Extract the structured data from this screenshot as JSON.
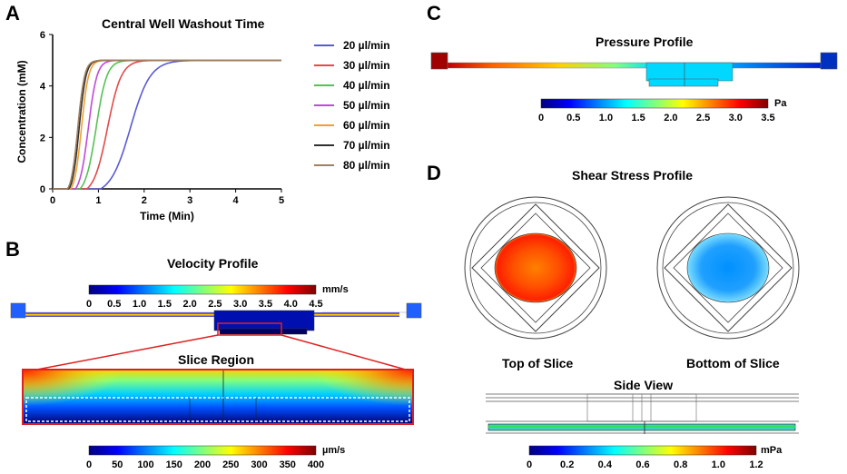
{
  "panels": {
    "a": {
      "letter": "A"
    },
    "b": {
      "letter": "B",
      "velocity_title": "Velocity Profile",
      "velocity_unit": "mm/s",
      "velocity_ticks": [
        "0",
        "0.5",
        "1.0",
        "1.5",
        "2.0",
        "2.5",
        "3.0",
        "3.5",
        "4.0",
        "4.5"
      ],
      "slice_title": "Slice Region",
      "slice_unit": "µm/s",
      "slice_ticks": [
        "0",
        "50",
        "100",
        "150",
        "200",
        "250",
        "300",
        "350",
        "400"
      ]
    },
    "c": {
      "letter": "C",
      "title": "Pressure Profile",
      "unit": "Pa",
      "ticks": [
        "0",
        "0.5",
        "1.0",
        "1.5",
        "2.0",
        "2.5",
        "3.0",
        "3.5"
      ]
    },
    "d": {
      "letter": "D",
      "title": "Shear Stress Profile",
      "top_caption": "Top of Slice",
      "bottom_caption": "Bottom of Slice",
      "side_caption": "Side View",
      "unit": "mPa",
      "ticks": [
        "0",
        "0.2",
        "0.4",
        "0.6",
        "0.8",
        "1.0",
        "1.2"
      ]
    }
  },
  "colors": {
    "jet": [
      "#00007f",
      "#0000ff",
      "#00aaff",
      "#00ffff",
      "#7fff7f",
      "#ffff00",
      "#ff7f00",
      "#ff0000",
      "#7f0000"
    ]
  },
  "chart_data": {
    "type": "line",
    "title": "Central Well Washout Time",
    "xlabel": "Time (Min)",
    "ylabel": "Concentration (mM)",
    "xlim": [
      0,
      5
    ],
    "ylim": [
      0,
      6
    ],
    "xticks": [
      0,
      1,
      2,
      3,
      4,
      5
    ],
    "yticks": [
      0,
      2,
      4,
      6
    ],
    "plateau": 5,
    "series": [
      {
        "name": "20 µl/min",
        "color": "#5a5ad6",
        "onset": 1.05,
        "midpoint": 1.7
      },
      {
        "name": "30 µl/min",
        "color": "#e34a4a",
        "onset": 0.75,
        "midpoint": 1.2
      },
      {
        "name": "40 µl/min",
        "color": "#55c255",
        "onset": 0.6,
        "midpoint": 0.95
      },
      {
        "name": "50 µl/min",
        "color": "#c04ad8",
        "onset": 0.5,
        "midpoint": 0.78
      },
      {
        "name": "60 µl/min",
        "color": "#f0a030",
        "onset": 0.4,
        "midpoint": 0.63
      },
      {
        "name": "70 µl/min",
        "color": "#303030",
        "onset": 0.36,
        "midpoint": 0.58
      },
      {
        "name": "80 µl/min",
        "color": "#a08060",
        "onset": 0.33,
        "midpoint": 0.55
      }
    ]
  }
}
